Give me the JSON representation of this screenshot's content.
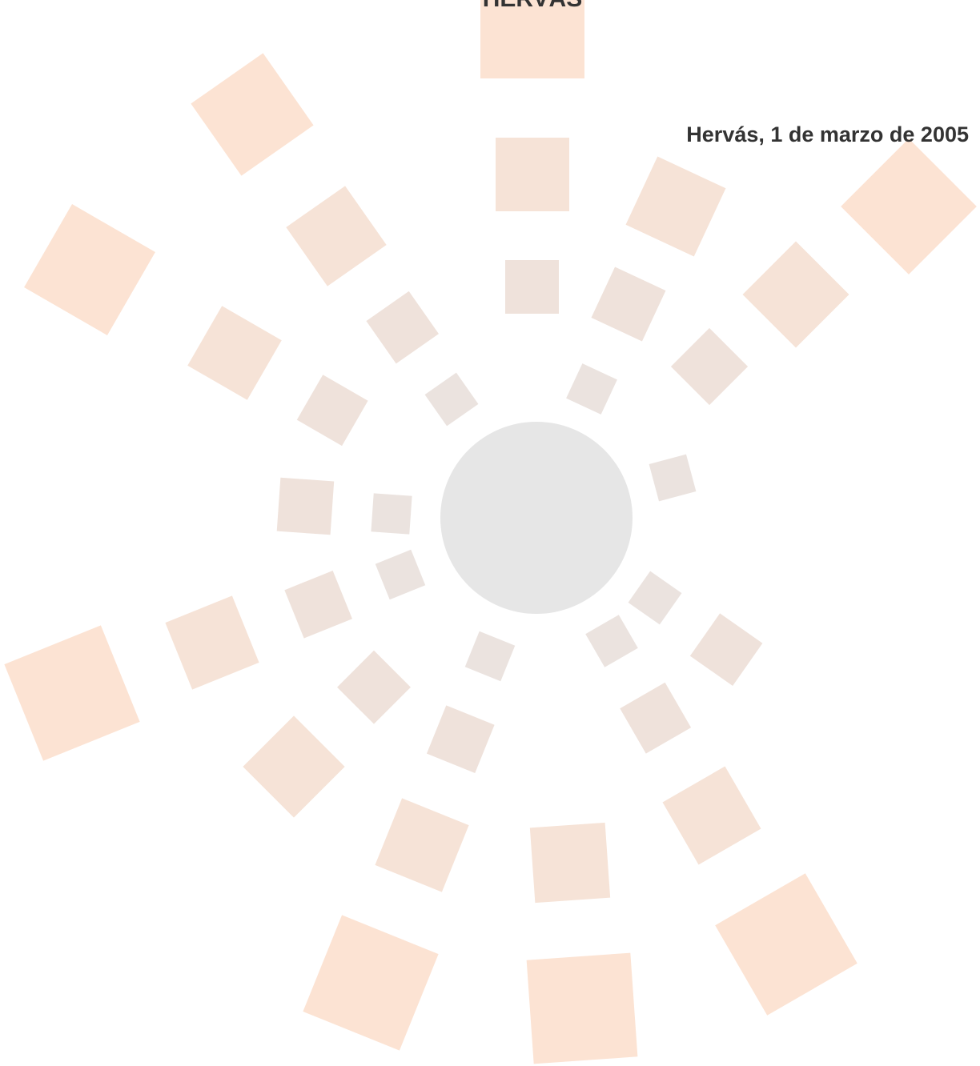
{
  "header": {
    "title": "HERVÁS"
  },
  "date": "Hervás, 1 de marzo de 2005"
}
